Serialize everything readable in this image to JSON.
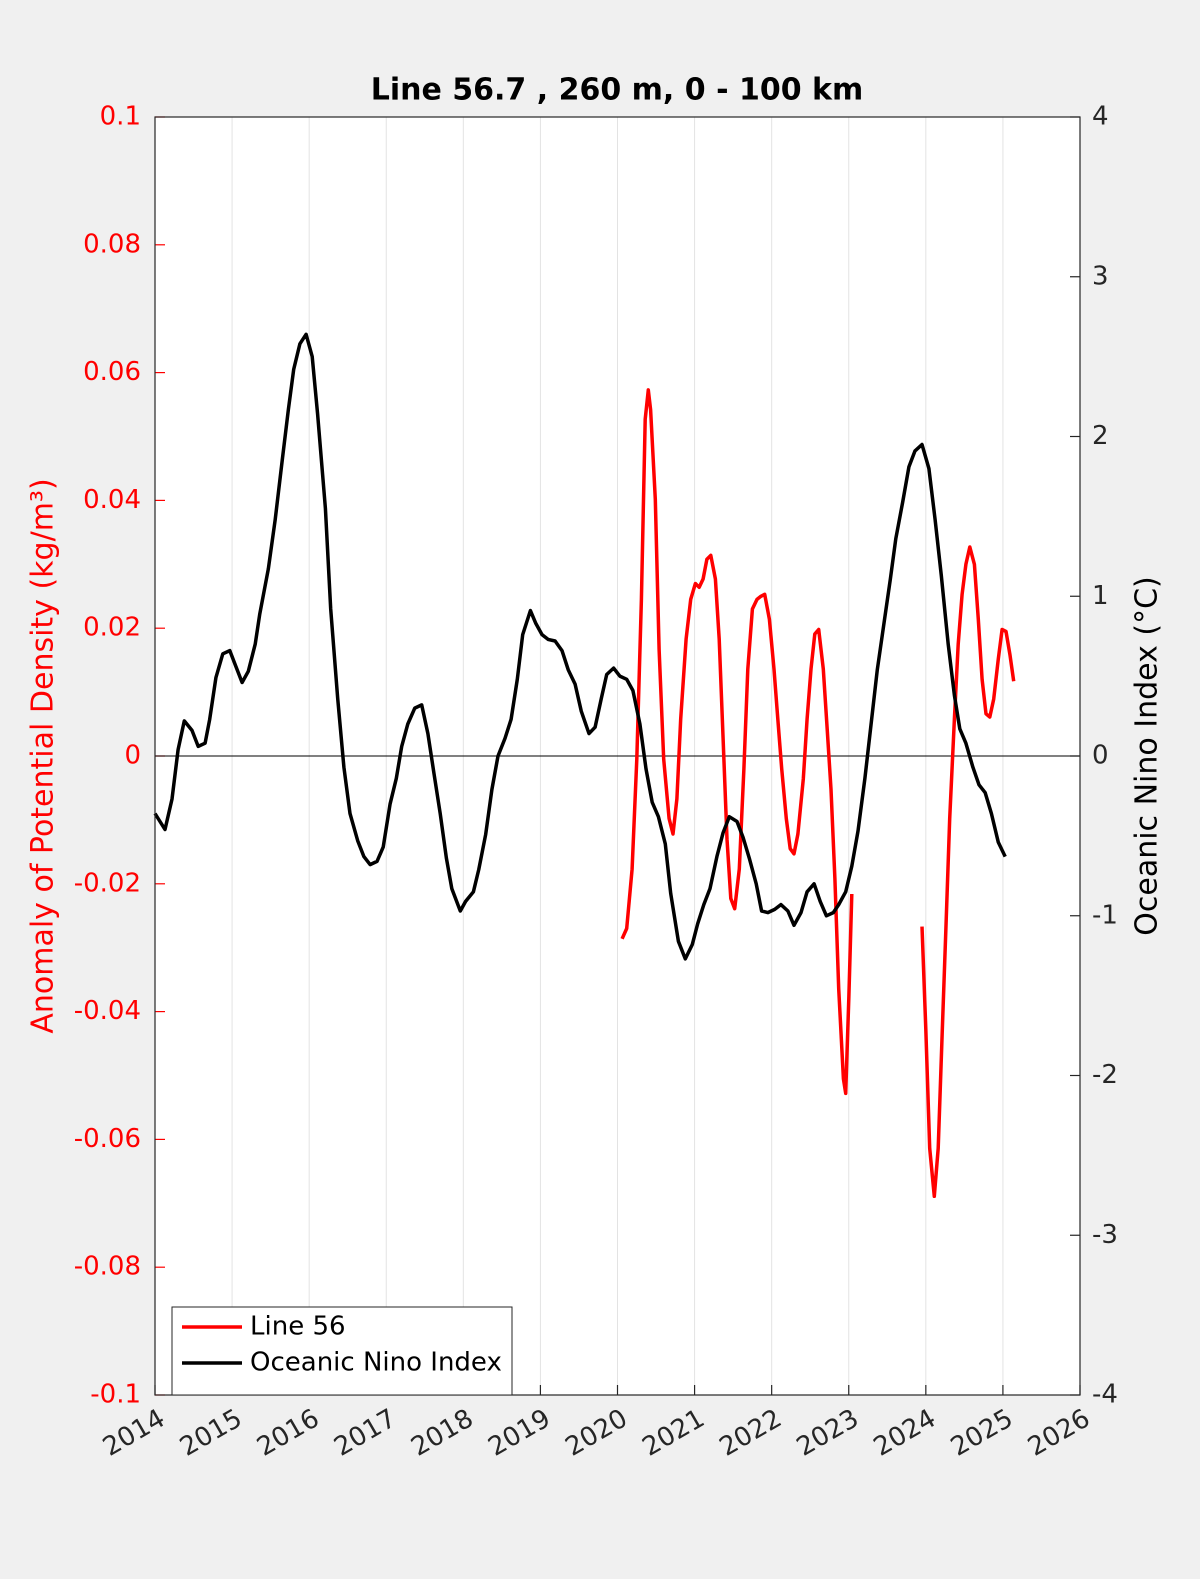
{
  "chart_data": {
    "type": "line",
    "title": "Line 56.7 , 260 m, 0 - 100 km",
    "y_label": "Anomaly of Potential Density (kg/m³)",
    "y2_label": "Oceanic Nino Index (°C)",
    "xlim": [
      2014,
      2026
    ],
    "xticks": [
      2014,
      2015,
      2016,
      2017,
      2018,
      2019,
      2020,
      2021,
      2022,
      2023,
      2024,
      2025,
      2026
    ],
    "ylim": [
      -0.1,
      0.1
    ],
    "yticks": [
      0.1,
      0.08,
      0.06,
      0.04,
      0.02,
      0,
      -0.02,
      -0.04,
      -0.06,
      -0.08,
      -0.1
    ],
    "y2lim": [
      -4,
      4
    ],
    "y2ticks": [
      4,
      3,
      2,
      1,
      0,
      -1,
      -2,
      -3,
      -4
    ],
    "y_color": "#ff0000",
    "grid": "x",
    "reference_line": 0,
    "legend": "lower left",
    "series": [
      {
        "name": "Line 56",
        "color": "#ff0000",
        "x": [
          2020.06,
          2020.12,
          2020.19,
          2020.25,
          2020.31,
          2020.36,
          2020.4,
          2020.43,
          2020.49,
          2020.54,
          2020.6,
          2020.67,
          2020.72,
          2020.77,
          2020.82,
          2020.89,
          2020.95,
          2021.01,
          2021.06,
          2021.11,
          2021.16,
          2021.21,
          2021.27,
          2021.32,
          2021.37,
          2021.42,
          2021.47,
          2021.52,
          2021.58,
          2021.64,
          2021.69,
          2021.75,
          2021.81,
          2021.86,
          2021.91,
          2021.97,
          2022.03,
          2022.08,
          2022.13,
          2022.19,
          2022.24,
          2022.29,
          2022.34,
          2022.41,
          2022.46,
          2022.51,
          2022.56,
          2022.61,
          2022.67,
          2022.72,
          2022.77,
          2022.82,
          2022.87,
          2022.93,
          2022.96,
          2023.0,
          2023.04,
          2023.5,
          2023.95,
          2024.0,
          2024.05,
          2024.11,
          2024.16,
          2024.21,
          2024.26,
          2024.31,
          2024.37,
          2024.42,
          2024.47,
          2024.52,
          2024.57,
          2024.63,
          2024.68,
          2024.73,
          2024.78,
          2024.83,
          2024.88,
          2024.94,
          2024.99,
          2025.04,
          2025.09,
          2025.14
        ],
        "values": [
          -0.0286,
          -0.027,
          -0.0177,
          -0.0005,
          0.0245,
          0.0527,
          0.0573,
          0.0542,
          0.0402,
          0.0167,
          -0.0005,
          -0.0098,
          -0.0122,
          -0.0067,
          0.0058,
          0.0183,
          0.0245,
          0.027,
          0.0264,
          0.0277,
          0.0308,
          0.0314,
          0.0277,
          0.0183,
          0.0027,
          -0.013,
          -0.0223,
          -0.0239,
          -0.0177,
          -0.002,
          0.0136,
          0.023,
          0.0245,
          0.025,
          0.0253,
          0.0214,
          0.0136,
          0.0058,
          -0.002,
          -0.0098,
          -0.0145,
          -0.0153,
          -0.0122,
          -0.0036,
          0.0058,
          0.0136,
          0.0191,
          0.0198,
          0.0136,
          0.0042,
          -0.0052,
          -0.0192,
          -0.0364,
          -0.0505,
          -0.0528,
          -0.038,
          -0.0216,
          null,
          -0.0267,
          -0.0427,
          -0.0614,
          -0.0689,
          -0.0614,
          -0.0442,
          -0.027,
          -0.0098,
          0.0058,
          0.0175,
          0.0253,
          0.03,
          0.0327,
          0.03,
          0.0214,
          0.012,
          0.0066,
          0.0061,
          0.0089,
          0.0152,
          0.0198,
          0.0195,
          0.0159,
          0.0117
        ]
      },
      {
        "name": "Oceanic Nino Index",
        "color": "#000000",
        "axis": "y2",
        "x": [
          2014.0,
          2014.13,
          2014.22,
          2014.3,
          2014.38,
          2014.48,
          2014.56,
          2014.65,
          2014.71,
          2014.79,
          2014.88,
          2014.97,
          2015.05,
          2015.13,
          2015.21,
          2015.3,
          2015.36,
          2015.47,
          2015.56,
          2015.65,
          2015.73,
          2015.8,
          2015.88,
          2015.96,
          2016.04,
          2016.11,
          2016.21,
          2016.28,
          2016.37,
          2016.45,
          2016.53,
          2016.63,
          2016.71,
          2016.79,
          2016.88,
          2016.96,
          2017.05,
          2017.13,
          2017.2,
          2017.28,
          2017.37,
          2017.46,
          2017.54,
          2017.62,
          2017.7,
          2017.78,
          2017.85,
          2017.96,
          2018.03,
          2018.13,
          2018.2,
          2018.29,
          2018.37,
          2018.45,
          2018.54,
          2018.62,
          2018.7,
          2018.77,
          2018.87,
          2018.94,
          2019.02,
          2019.1,
          2019.19,
          2019.28,
          2019.36,
          2019.45,
          2019.53,
          2019.63,
          2019.71,
          2019.79,
          2019.86,
          2019.95,
          2020.03,
          2020.12,
          2020.2,
          2020.29,
          2020.37,
          2020.45,
          2020.53,
          2020.62,
          2020.69,
          2020.79,
          2020.88,
          2020.97,
          2021.04,
          2021.12,
          2021.2,
          2021.29,
          2021.37,
          2021.45,
          2021.55,
          2021.63,
          2021.71,
          2021.8,
          2021.87,
          2021.95,
          2022.04,
          2022.12,
          2022.21,
          2022.29,
          2022.38,
          2022.46,
          2022.55,
          2022.63,
          2022.71,
          2022.8,
          2022.87,
          2022.96,
          2023.04,
          2023.12,
          2023.21,
          2023.29,
          2023.37,
          2023.46,
          2023.54,
          2023.61,
          2023.7,
          2023.78,
          2023.86,
          2023.95,
          2024.04,
          2024.12,
          2024.2,
          2024.29,
          2024.37,
          2024.44,
          2024.52,
          2024.61,
          2024.69,
          2024.77,
          2024.85,
          2024.94,
          2025.03
        ],
        "values": [
          -0.36,
          -0.46,
          -0.27,
          0.04,
          0.22,
          0.16,
          0.06,
          0.08,
          0.23,
          0.49,
          0.64,
          0.66,
          0.56,
          0.46,
          0.53,
          0.7,
          0.89,
          1.17,
          1.48,
          1.85,
          2.17,
          2.42,
          2.58,
          2.64,
          2.5,
          2.14,
          1.55,
          0.92,
          0.36,
          -0.07,
          -0.36,
          -0.53,
          -0.63,
          -0.68,
          -0.66,
          -0.57,
          -0.3,
          -0.14,
          0.06,
          0.2,
          0.3,
          0.32,
          0.14,
          -0.11,
          -0.36,
          -0.64,
          -0.83,
          -0.97,
          -0.91,
          -0.85,
          -0.71,
          -0.49,
          -0.21,
          0,
          0.11,
          0.23,
          0.48,
          0.76,
          0.91,
          0.83,
          0.76,
          0.73,
          0.72,
          0.66,
          0.54,
          0.45,
          0.28,
          0.14,
          0.18,
          0.36,
          0.51,
          0.55,
          0.5,
          0.48,
          0.41,
          0.2,
          -0.08,
          -0.29,
          -0.38,
          -0.55,
          -0.86,
          -1.16,
          -1.27,
          -1.18,
          -1.05,
          -0.93,
          -0.83,
          -0.63,
          -0.48,
          -0.38,
          -0.41,
          -0.51,
          -0.64,
          -0.8,
          -0.97,
          -0.98,
          -0.96,
          -0.93,
          -0.97,
          -1.06,
          -0.98,
          -0.85,
          -0.8,
          -0.91,
          -1.0,
          -0.98,
          -0.93,
          -0.85,
          -0.69,
          -0.47,
          -0.14,
          0.2,
          0.54,
          0.84,
          1.11,
          1.36,
          1.59,
          1.81,
          1.91,
          1.95,
          1.8,
          1.48,
          1.13,
          0.7,
          0.38,
          0.17,
          0.08,
          -0.07,
          -0.18,
          -0.23,
          -0.36,
          -0.54,
          -0.63
        ]
      }
    ]
  }
}
